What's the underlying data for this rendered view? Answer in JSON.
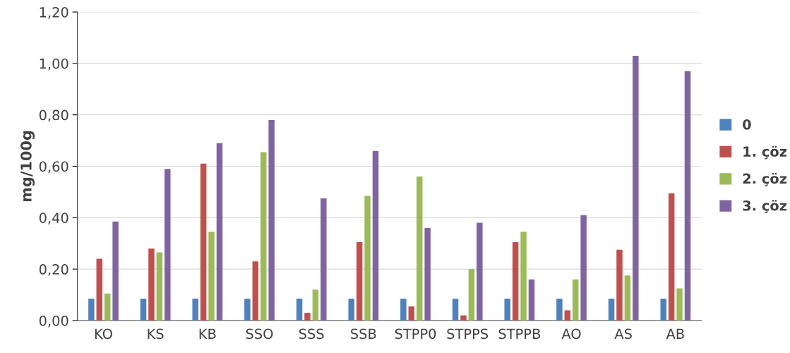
{
  "chart_data": {
    "type": "bar",
    "ylabel": "mg/100g",
    "categories": [
      "KO",
      "KS",
      "KB",
      "SSO",
      "SSS",
      "SSB",
      "STPP0",
      "STPPS",
      "STPPB",
      "AO",
      "AS",
      "AB"
    ],
    "series": [
      {
        "name": "0",
        "color": "#4f81bd",
        "values": [
          0.085,
          0.085,
          0.085,
          0.085,
          0.085,
          0.085,
          0.085,
          0.085,
          0.085,
          0.085,
          0.085,
          0.085
        ]
      },
      {
        "name": "1. çöz",
        "color": "#c0504d",
        "values": [
          0.24,
          0.28,
          0.61,
          0.23,
          0.03,
          0.305,
          0.055,
          0.02,
          0.305,
          0.04,
          0.275,
          0.495
        ]
      },
      {
        "name": "2. çöz",
        "color": "#9bbb59",
        "values": [
          0.105,
          0.265,
          0.345,
          0.655,
          0.12,
          0.485,
          0.56,
          0.2,
          0.345,
          0.16,
          0.175,
          0.125
        ]
      },
      {
        "name": "3. çöz",
        "color": "#8064a2",
        "values": [
          0.385,
          0.59,
          0.69,
          0.78,
          0.475,
          0.66,
          0.36,
          0.38,
          0.16,
          0.41,
          1.03,
          0.97
        ]
      }
    ],
    "ylim": [
      0,
      1.2
    ],
    "yticks": [
      {
        "value": 0,
        "label": "0,00"
      },
      {
        "value": 0.2,
        "label": "0,20"
      },
      {
        "value": 0.4,
        "label": "0,40"
      },
      {
        "value": 0.6,
        "label": "0,60"
      },
      {
        "value": 0.8,
        "label": "0,80"
      },
      {
        "value": 1.0,
        "label": "1,00"
      },
      {
        "value": 1.2,
        "label": "1,20"
      }
    ],
    "grid": "y",
    "legend": "right"
  }
}
